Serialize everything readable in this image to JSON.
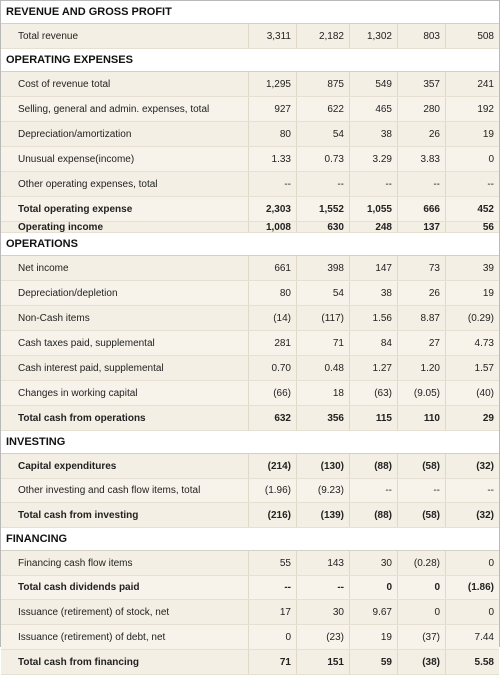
{
  "sections": [
    {
      "title": "REVENUE AND GROSS PROFIT",
      "rows": [
        {
          "label": "Total revenue",
          "values": [
            "3,311",
            "2,182",
            "1,302",
            "803",
            "508"
          ],
          "bold": false
        }
      ]
    },
    {
      "title": "OPERATING EXPENSES",
      "rows": [
        {
          "label": "Cost of revenue total",
          "values": [
            "1,295",
            "875",
            "549",
            "357",
            "241"
          ],
          "bold": false
        },
        {
          "label": "Selling, general and admin. expenses, total",
          "values": [
            "927",
            "622",
            "465",
            "280",
            "192"
          ],
          "bold": false
        },
        {
          "label": "Depreciation/amortization",
          "values": [
            "80",
            "54",
            "38",
            "26",
            "19"
          ],
          "bold": false
        },
        {
          "label": "Unusual expense(income)",
          "values": [
            "1.33",
            "0.73",
            "3.29",
            "3.83",
            "0"
          ],
          "bold": false
        },
        {
          "label": "Other operating expenses, total",
          "values": [
            "--",
            "--",
            "--",
            "--",
            "--"
          ],
          "bold": false
        },
        {
          "label": "Total operating expense",
          "values": [
            "2,303",
            "1,552",
            "1,055",
            "666",
            "452"
          ],
          "bold": true
        },
        {
          "label": "Operating income",
          "values": [
            "1,008",
            "630",
            "248",
            "137",
            "56"
          ],
          "bold": true
        }
      ]
    },
    {
      "title": "OPERATIONS",
      "rows": [
        {
          "label": "Net income",
          "values": [
            "661",
            "398",
            "147",
            "73",
            "39"
          ],
          "bold": false
        },
        {
          "label": "Depreciation/depletion",
          "values": [
            "80",
            "54",
            "38",
            "26",
            "19"
          ],
          "bold": false
        },
        {
          "label": "Non-Cash items",
          "values": [
            "(14)",
            "(117)",
            "1.56",
            "8.87",
            "(0.29)"
          ],
          "bold": false
        },
        {
          "label": "Cash taxes paid, supplemental",
          "values": [
            "281",
            "71",
            "84",
            "27",
            "4.73"
          ],
          "bold": false
        },
        {
          "label": "Cash interest paid, supplemental",
          "values": [
            "0.70",
            "0.48",
            "1.27",
            "1.20",
            "1.57"
          ],
          "bold": false
        },
        {
          "label": "Changes in working capital",
          "values": [
            "(66)",
            "18",
            "(63)",
            "(9.05)",
            "(40)"
          ],
          "bold": false
        },
        {
          "label": "Total cash from operations",
          "values": [
            "632",
            "356",
            "115",
            "110",
            "29"
          ],
          "bold": true
        }
      ]
    },
    {
      "title": "INVESTING",
      "rows": [
        {
          "label": "Capital expenditures",
          "values": [
            "(214)",
            "(130)",
            "(88)",
            "(58)",
            "(32)"
          ],
          "bold": true
        },
        {
          "label": "Other investing and cash flow items, total",
          "values": [
            "(1.96)",
            "(9.23)",
            "--",
            "--",
            "--"
          ],
          "bold": false
        },
        {
          "label": "Total cash from investing",
          "values": [
            "(216)",
            "(139)",
            "(88)",
            "(58)",
            "(32)"
          ],
          "bold": true
        }
      ]
    },
    {
      "title": "FINANCING",
      "rows": [
        {
          "label": "Financing cash flow items",
          "values": [
            "55",
            "143",
            "30",
            "(0.28)",
            "0"
          ],
          "bold": false
        },
        {
          "label": "Total cash dividends paid",
          "values": [
            "--",
            "--",
            "0",
            "0",
            "(1.86)"
          ],
          "bold": true
        },
        {
          "label": "Issuance (retirement) of stock, net",
          "values": [
            "17",
            "30",
            "9.67",
            "0",
            "0"
          ],
          "bold": false
        },
        {
          "label": "Issuance (retirement) of debt, net",
          "values": [
            "0",
            "(23)",
            "19",
            "(37)",
            "7.44"
          ],
          "bold": false
        },
        {
          "label": "Total cash from financing",
          "values": [
            "71",
            "151",
            "59",
            "(38)",
            "5.58"
          ],
          "bold": true
        }
      ]
    }
  ]
}
